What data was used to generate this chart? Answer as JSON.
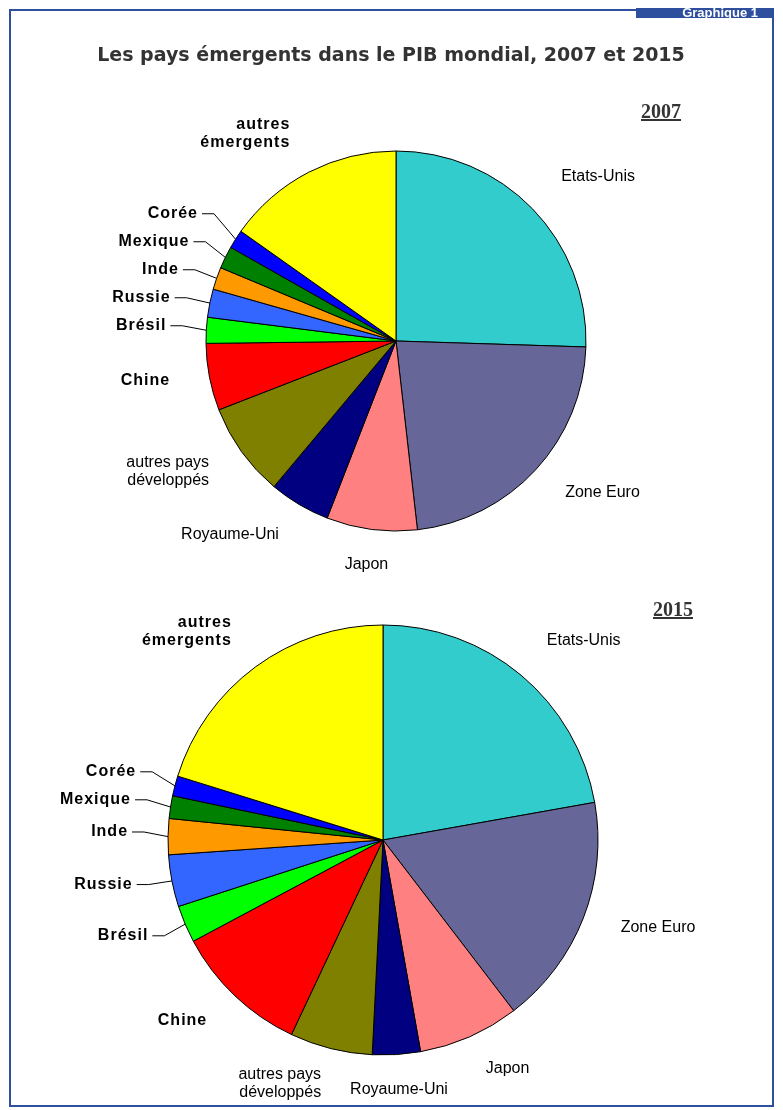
{
  "chart_data": [
    {
      "type": "pie",
      "title": "2007",
      "annotations": [
        "Graphique 1",
        "Les pays émergents dans le PIB mondial, 2007 et 2015"
      ],
      "categories": [
        "Etats-Unis",
        "Zone Euro",
        "Japon",
        "Royaume-Uni",
        "autres pays développés",
        "Chine",
        "Brésil",
        "Russie",
        "Inde",
        "Mexique",
        "Corée",
        "autres émergents"
      ],
      "values": [
        25.5,
        22.7,
        7.7,
        5.2,
        8.0,
        5.7,
        2.2,
        2.4,
        1.9,
        1.9,
        1.6,
        15.2
      ],
      "colors": [
        "#33cccc",
        "#666699",
        "#ff8080",
        "#000080",
        "#808000",
        "#ff0000",
        "#00ff00",
        "#3366ff",
        "#ff9900",
        "#008000",
        "#0000ff",
        "#ffff00"
      ]
    },
    {
      "type": "pie",
      "title": "2015",
      "categories": [
        "Etats-Unis",
        "Zone Euro",
        "Japon",
        "Royaume-Uni",
        "autres pays développés",
        "Chine",
        "Brésil",
        "Russie",
        "Inde",
        "Mexique",
        "Corée",
        "autres émergents"
      ],
      "values": [
        22.2,
        17.4,
        7.6,
        3.6,
        6.2,
        10.2,
        2.8,
        3.9,
        2.7,
        1.7,
        1.5,
        20.2
      ],
      "colors": [
        "#33cccc",
        "#666699",
        "#ff8080",
        "#000080",
        "#808000",
        "#ff0000",
        "#00ff00",
        "#3366ff",
        "#ff9900",
        "#008000",
        "#0000ff",
        "#ffff00"
      ]
    }
  ]
}
